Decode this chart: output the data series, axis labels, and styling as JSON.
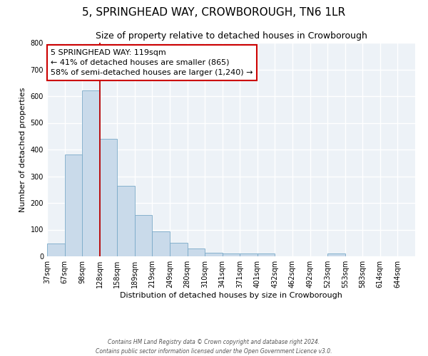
{
  "title": "5, SPRINGHEAD WAY, CROWBOROUGH, TN6 1LR",
  "subtitle": "Size of property relative to detached houses in Crowborough",
  "xlabel": "Distribution of detached houses by size in Crowborough",
  "ylabel": "Number of detached properties",
  "footer_line1": "Contains HM Land Registry data © Crown copyright and database right 2024.",
  "footer_line2": "Contains public sector information licensed under the Open Government Licence v3.0.",
  "bar_labels": [
    "37sqm",
    "67sqm",
    "98sqm",
    "128sqm",
    "158sqm",
    "189sqm",
    "219sqm",
    "249sqm",
    "280sqm",
    "310sqm",
    "341sqm",
    "371sqm",
    "401sqm",
    "432sqm",
    "462sqm",
    "492sqm",
    "523sqm",
    "553sqm",
    "583sqm",
    "614sqm",
    "644sqm"
  ],
  "bar_heights": [
    47,
    382,
    622,
    440,
    265,
    155,
    94,
    50,
    29,
    14,
    12,
    12,
    11,
    0,
    0,
    0,
    12,
    0,
    0,
    0,
    0
  ],
  "bar_color": "#c9daea",
  "bar_edge_color": "#7aaac8",
  "ylim": [
    0,
    800
  ],
  "yticks": [
    0,
    100,
    200,
    300,
    400,
    500,
    600,
    700,
    800
  ],
  "vline_x": 3,
  "vline_color": "#bb0000",
  "annotation_text": "5 SPRINGHEAD WAY: 119sqm\n← 41% of detached houses are smaller (865)\n58% of semi-detached houses are larger (1,240) →",
  "annotation_box_color": "#ffffff",
  "annotation_box_edgecolor": "#cc0000",
  "bg_color": "#edf2f7",
  "grid_color": "#ffffff",
  "figure_bg": "#ffffff",
  "title_fontsize": 11,
  "subtitle_fontsize": 9,
  "ylabel_fontsize": 8,
  "xlabel_fontsize": 8,
  "tick_fontsize": 7,
  "annot_fontsize": 8
}
